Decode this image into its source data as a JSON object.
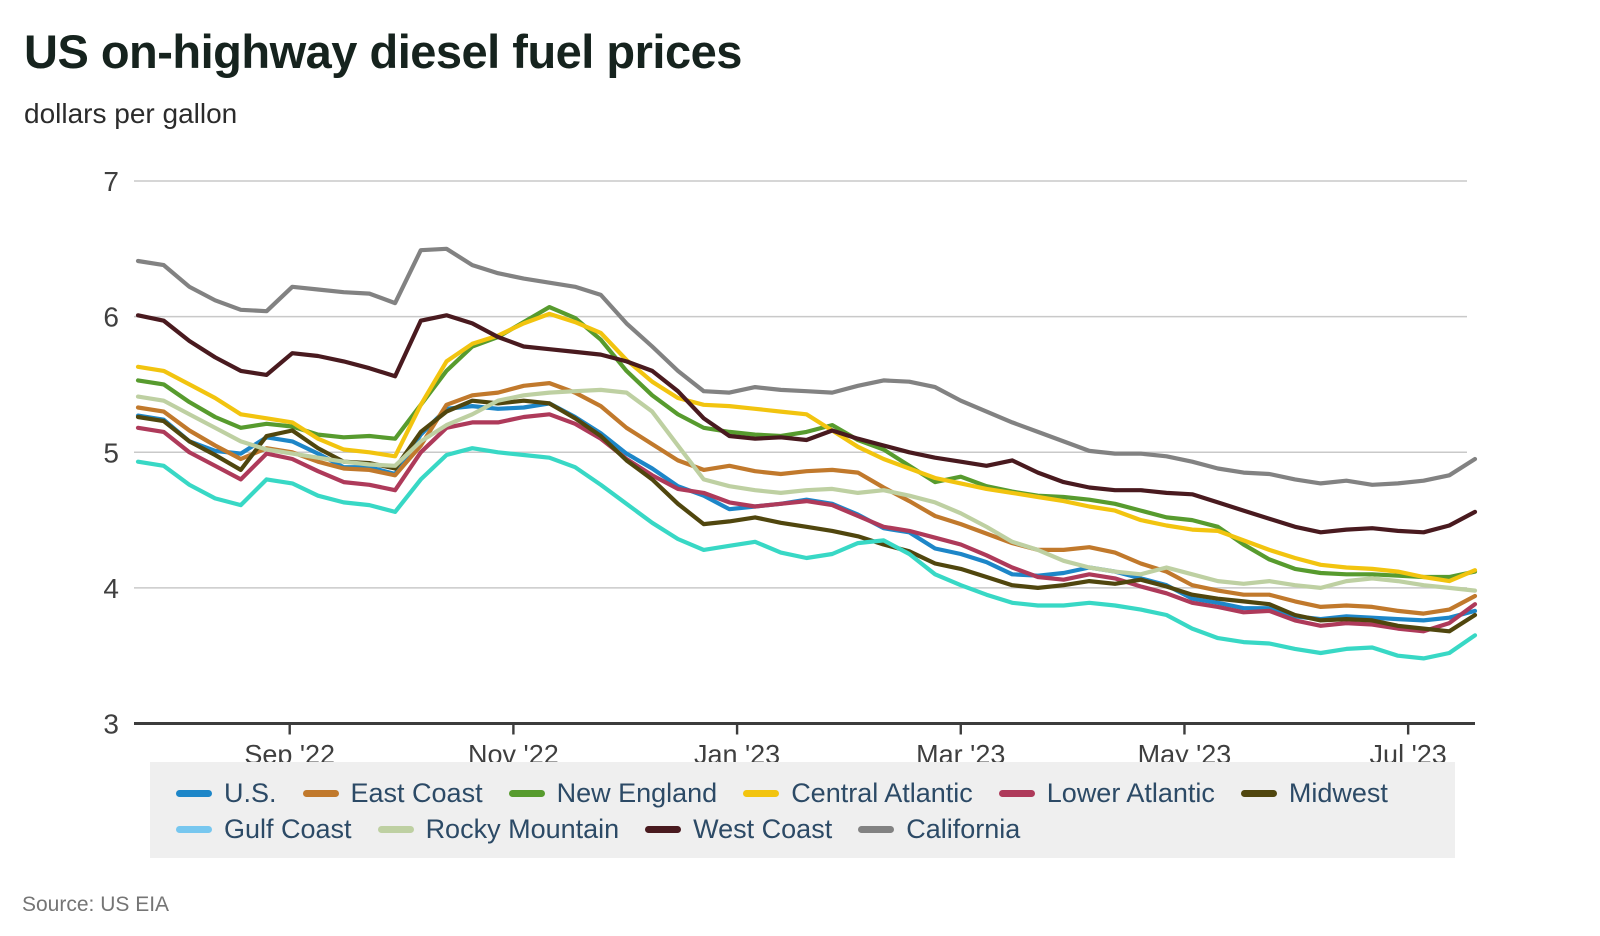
{
  "page": {
    "title": "US on-highway diesel fuel prices",
    "subtitle": "dollars per gallon",
    "source": "Source: US EIA"
  },
  "colors": {
    "background": "#ffffff",
    "gridline": "#c9c9c9",
    "axis_line": "#3c3c3c",
    "axis_text": "#3f3f3f",
    "legend_background": "#efefef",
    "legend_text": "#2c4a66",
    "title_text": "#16231e",
    "source_text": "#757575"
  },
  "chart_data": {
    "type": "line",
    "title": "US on-highway diesel fuel prices",
    "ylabel": "dollars per gallon",
    "ylim": [
      3,
      7
    ],
    "y_ticks": [
      7,
      6,
      5,
      4,
      3
    ],
    "grid": "horizontal",
    "legend_position": "bottom",
    "weeks": 53,
    "x_note": "weekly observations, late Jul 2022 through late Jul 2023",
    "x_tick_labels": [
      "Sep '22",
      "Nov '22",
      "Jan '23",
      "Mar '23",
      "May '23",
      "Jul '23"
    ],
    "x_tick_week_index": [
      5.9,
      14.6,
      23.3,
      32.0,
      40.7,
      49.4
    ],
    "series": [
      {
        "id": "us",
        "name": "U.S.",
        "color": "#1d86c8",
        "values": [
          5.27,
          5.24,
          5.08,
          5.01,
          4.99,
          5.11,
          5.08,
          4.99,
          4.89,
          4.89,
          4.84,
          5.13,
          5.32,
          5.34,
          5.32,
          5.33,
          5.36,
          5.26,
          5.14,
          4.99,
          4.88,
          4.75,
          4.68,
          4.58,
          4.6,
          4.62,
          4.65,
          4.62,
          4.54,
          4.44,
          4.41,
          4.29,
          4.25,
          4.19,
          4.1,
          4.09,
          4.11,
          4.15,
          4.12,
          4.07,
          4.02,
          3.92,
          3.89,
          3.85,
          3.85,
          3.79,
          3.77,
          3.79,
          3.78,
          3.77,
          3.76,
          3.78,
          3.83
        ]
      },
      {
        "id": "east-coast",
        "name": "East Coast",
        "color": "#c1792c",
        "values": [
          5.33,
          5.3,
          5.16,
          5.05,
          4.95,
          5.03,
          5.0,
          4.93,
          4.88,
          4.87,
          4.83,
          5.05,
          5.35,
          5.42,
          5.44,
          5.49,
          5.51,
          5.44,
          5.34,
          5.18,
          5.06,
          4.94,
          4.87,
          4.9,
          4.86,
          4.84,
          4.86,
          4.87,
          4.85,
          4.74,
          4.64,
          4.53,
          4.47,
          4.4,
          4.33,
          4.28,
          4.28,
          4.3,
          4.26,
          4.18,
          4.12,
          4.02,
          3.98,
          3.95,
          3.95,
          3.9,
          3.86,
          3.87,
          3.86,
          3.83,
          3.81,
          3.84,
          3.94
        ]
      },
      {
        "id": "new-england",
        "name": "New England",
        "color": "#579b2e",
        "values": [
          5.53,
          5.5,
          5.37,
          5.26,
          5.18,
          5.21,
          5.19,
          5.13,
          5.11,
          5.12,
          5.1,
          5.35,
          5.6,
          5.78,
          5.85,
          5.96,
          6.07,
          5.99,
          5.83,
          5.6,
          5.42,
          5.28,
          5.18,
          5.15,
          5.13,
          5.12,
          5.15,
          5.2,
          5.09,
          5.02,
          4.9,
          4.78,
          4.82,
          4.75,
          4.71,
          4.68,
          4.67,
          4.65,
          4.62,
          4.57,
          4.52,
          4.5,
          4.45,
          4.32,
          4.21,
          4.14,
          4.11,
          4.1,
          4.1,
          4.09,
          4.08,
          4.08,
          4.12
        ]
      },
      {
        "id": "central-atlantic",
        "name": "Central Atlantic",
        "color": "#f2c40f",
        "values": [
          5.63,
          5.6,
          5.5,
          5.4,
          5.28,
          5.25,
          5.22,
          5.1,
          5.02,
          5.0,
          4.97,
          5.35,
          5.67,
          5.8,
          5.86,
          5.95,
          6.02,
          5.96,
          5.88,
          5.68,
          5.52,
          5.4,
          5.35,
          5.34,
          5.32,
          5.3,
          5.28,
          5.16,
          5.04,
          4.95,
          4.88,
          4.81,
          4.77,
          4.73,
          4.7,
          4.67,
          4.64,
          4.6,
          4.57,
          4.5,
          4.46,
          4.43,
          4.42,
          4.35,
          4.28,
          4.22,
          4.17,
          4.15,
          4.14,
          4.12,
          4.08,
          4.05,
          4.13
        ]
      },
      {
        "id": "lower-atlantic",
        "name": "Lower Atlantic",
        "color": "#ae3a5a",
        "values": [
          5.18,
          5.15,
          5.0,
          4.9,
          4.8,
          4.99,
          4.95,
          4.86,
          4.78,
          4.76,
          4.72,
          5.0,
          5.18,
          5.22,
          5.22,
          5.26,
          5.28,
          5.21,
          5.1,
          4.95,
          4.83,
          4.73,
          4.7,
          4.63,
          4.6,
          4.62,
          4.64,
          4.61,
          4.53,
          4.45,
          4.42,
          4.37,
          4.32,
          4.24,
          4.15,
          4.08,
          4.06,
          4.1,
          4.07,
          4.01,
          3.96,
          3.89,
          3.86,
          3.82,
          3.83,
          3.76,
          3.72,
          3.74,
          3.73,
          3.7,
          3.68,
          3.74,
          3.88
        ]
      },
      {
        "id": "midwest",
        "name": "Midwest",
        "color": "#50460e",
        "values": [
          5.26,
          5.23,
          5.08,
          4.98,
          4.87,
          5.12,
          5.16,
          5.03,
          4.93,
          4.92,
          4.88,
          5.15,
          5.3,
          5.38,
          5.36,
          5.38,
          5.36,
          5.25,
          5.12,
          4.94,
          4.8,
          4.62,
          4.47,
          4.49,
          4.52,
          4.48,
          4.45,
          4.42,
          4.38,
          4.32,
          4.27,
          4.18,
          4.14,
          4.08,
          4.02,
          4.0,
          4.02,
          4.05,
          4.03,
          4.06,
          4.01,
          3.95,
          3.92,
          3.9,
          3.88,
          3.8,
          3.76,
          3.77,
          3.76,
          3.72,
          3.7,
          3.68,
          3.8
        ]
      },
      {
        "id": "gulf-coast",
        "name": "Gulf Coast",
        "color": "#38d8c5",
        "legend_color": "#77c7ef",
        "values": [
          4.93,
          4.9,
          4.76,
          4.66,
          4.61,
          4.8,
          4.77,
          4.68,
          4.63,
          4.61,
          4.56,
          4.8,
          4.98,
          5.03,
          5.0,
          4.98,
          4.96,
          4.89,
          4.76,
          4.62,
          4.48,
          4.36,
          4.28,
          4.31,
          4.34,
          4.26,
          4.22,
          4.25,
          4.33,
          4.35,
          4.25,
          4.1,
          4.02,
          3.95,
          3.89,
          3.87,
          3.87,
          3.89,
          3.87,
          3.84,
          3.8,
          3.7,
          3.63,
          3.6,
          3.59,
          3.55,
          3.52,
          3.55,
          3.56,
          3.5,
          3.48,
          3.52,
          3.65
        ]
      },
      {
        "id": "rocky-mountain",
        "name": "Rocky Mountain",
        "color": "#bed0a2",
        "values": [
          5.41,
          5.38,
          5.28,
          5.18,
          5.08,
          5.02,
          4.99,
          4.96,
          4.93,
          4.91,
          4.9,
          5.08,
          5.2,
          5.28,
          5.38,
          5.42,
          5.44,
          5.45,
          5.46,
          5.44,
          5.3,
          5.05,
          4.8,
          4.75,
          4.72,
          4.7,
          4.72,
          4.73,
          4.7,
          4.72,
          4.68,
          4.63,
          4.55,
          4.45,
          4.34,
          4.28,
          4.2,
          4.15,
          4.12,
          4.1,
          4.15,
          4.1,
          4.05,
          4.03,
          4.05,
          4.02,
          4.0,
          4.05,
          4.07,
          4.05,
          4.02,
          4.0,
          3.98
        ]
      },
      {
        "id": "west-coast",
        "name": "West Coast",
        "color": "#491a1f",
        "values": [
          6.01,
          5.97,
          5.82,
          5.7,
          5.6,
          5.57,
          5.73,
          5.71,
          5.67,
          5.62,
          5.56,
          5.97,
          6.01,
          5.95,
          5.85,
          5.78,
          5.76,
          5.74,
          5.72,
          5.67,
          5.6,
          5.45,
          5.25,
          5.12,
          5.1,
          5.11,
          5.09,
          5.16,
          5.1,
          5.05,
          5.0,
          4.96,
          4.93,
          4.9,
          4.94,
          4.85,
          4.78,
          4.74,
          4.72,
          4.72,
          4.7,
          4.69,
          4.63,
          4.57,
          4.51,
          4.45,
          4.41,
          4.43,
          4.44,
          4.42,
          4.41,
          4.46,
          4.56
        ]
      },
      {
        "id": "california",
        "name": "California",
        "color": "#828282",
        "values": [
          6.41,
          6.38,
          6.22,
          6.12,
          6.05,
          6.04,
          6.22,
          6.2,
          6.18,
          6.17,
          6.1,
          6.49,
          6.5,
          6.38,
          6.32,
          6.28,
          6.25,
          6.22,
          6.16,
          5.95,
          5.78,
          5.6,
          5.45,
          5.44,
          5.48,
          5.46,
          5.45,
          5.44,
          5.49,
          5.53,
          5.52,
          5.48,
          5.38,
          5.3,
          5.22,
          5.15,
          5.08,
          5.01,
          4.99,
          4.99,
          4.97,
          4.93,
          4.88,
          4.85,
          4.84,
          4.8,
          4.77,
          4.79,
          4.76,
          4.77,
          4.79,
          4.83,
          4.95
        ]
      }
    ]
  }
}
